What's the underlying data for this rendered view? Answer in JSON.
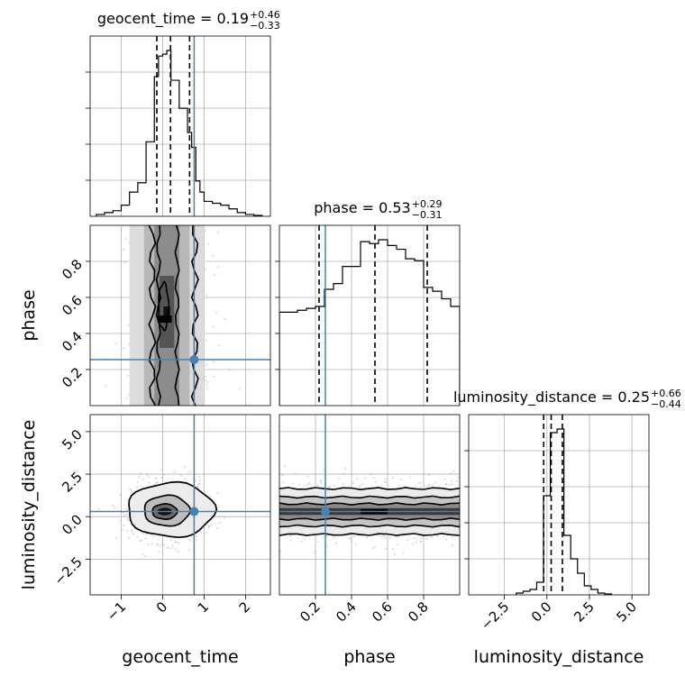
{
  "chart_data": {
    "type": "corner",
    "parameters": [
      "geocent_time",
      "phase",
      "luminosity_distance"
    ],
    "truth": {
      "geocent_time": 0.76,
      "phase": 0.255,
      "luminosity_distance": 0.3
    },
    "colors": {
      "truth": "#4682b4",
      "hist": "#000000",
      "grid": "#b0b0b0",
      "samples": "#9a9a9a"
    },
    "grid": true,
    "panels": {
      "geocent_time_hist": {
        "title_main": "geocent_time = 0.19",
        "title_sup": "+0.46",
        "title_sub": "−0.33",
        "xlim": [
          -1.75,
          2.6
        ],
        "quantiles": [
          -0.14,
          0.19,
          0.65
        ],
        "bins": [
          -1.6,
          -1.4,
          -1.2,
          -1.0,
          -0.8,
          -0.6,
          -0.4,
          -0.2,
          -0.1,
          0.0,
          0.1,
          0.2,
          0.3,
          0.4,
          0.5,
          0.6,
          0.7,
          0.8,
          0.9,
          1.0,
          1.2,
          1.4,
          1.6,
          1.8,
          2.0,
          2.2,
          2.4
        ],
        "counts": [
          0.01,
          0.02,
          0.03,
          0.06,
          0.13,
          0.18,
          0.4,
          0.75,
          0.86,
          0.87,
          0.89,
          0.73,
          0.73,
          0.58,
          0.58,
          0.45,
          0.37,
          0.19,
          0.13,
          0.08,
          0.07,
          0.06,
          0.04,
          0.02,
          0.01,
          0.005
        ]
      },
      "phase_hist": {
        "title_main": "phase = 0.53",
        "title_sup": "+0.29",
        "title_sub": "−0.31",
        "xlim": [
          0.0,
          1.0
        ],
        "quantiles": [
          0.22,
          0.53,
          0.82
        ],
        "bins": [
          0.0,
          0.05,
          0.1,
          0.15,
          0.2,
          0.25,
          0.3,
          0.35,
          0.4,
          0.45,
          0.5,
          0.55,
          0.6,
          0.65,
          0.7,
          0.75,
          0.8,
          0.85,
          0.9,
          0.95,
          1.0
        ],
        "counts": [
          0.49,
          0.49,
          0.5,
          0.51,
          0.52,
          0.61,
          0.64,
          0.73,
          0.73,
          0.86,
          0.85,
          0.87,
          0.84,
          0.82,
          0.77,
          0.76,
          0.62,
          0.6,
          0.56,
          0.52
        ]
      },
      "luminosity_distance_hist": {
        "title_main": "luminosity_distance = 0.25",
        "title_sup": "+0.66",
        "title_sub": "−0.44",
        "xlim": [
          -4.6,
          6.0
        ],
        "quantiles": [
          -0.19,
          0.25,
          0.91
        ],
        "bins": [
          -1.8,
          -1.4,
          -1.0,
          -0.6,
          -0.2,
          0.2,
          0.6,
          1.0,
          1.4,
          1.8,
          2.2,
          2.6,
          3.0,
          3.4,
          3.8
        ],
        "counts": [
          0.01,
          0.02,
          0.03,
          0.07,
          0.55,
          0.9,
          0.92,
          0.33,
          0.2,
          0.12,
          0.05,
          0.03,
          0.01,
          0.005
        ]
      },
      "phase_vs_geocent_time": {
        "xlim": [
          -1.75,
          2.6
        ],
        "ylim": [
          0.0,
          1.0
        ],
        "mode": {
          "x": 0.05,
          "y": 0.48
        }
      },
      "luminosity_distance_vs_geocent_time": {
        "xlim": [
          -1.75,
          2.6
        ],
        "ylim": [
          -4.6,
          6.0
        ],
        "mode": {
          "x": 0.05,
          "y": 0.3
        }
      },
      "luminosity_distance_vs_phase": {
        "xlim": [
          0.0,
          1.0
        ],
        "ylim": [
          -4.6,
          6.0
        ],
        "mode": {
          "x": 0.53,
          "y": 0.3
        }
      }
    },
    "ticks": {
      "geocent_time": {
        "values": [
          -1,
          0,
          1,
          2
        ],
        "labels": [
          "−1",
          "0",
          "1",
          "2"
        ]
      },
      "phase": {
        "values": [
          0.2,
          0.4,
          0.6,
          0.8
        ],
        "labels": [
          "0.2",
          "0.4",
          "0.6",
          "0.8"
        ]
      },
      "luminosity_distance": {
        "values": [
          -2.5,
          0.0,
          2.5,
          5.0
        ],
        "labels": [
          "−2.5",
          "0.0",
          "2.5",
          "5.0"
        ]
      }
    },
    "xlabels": [
      "geocent_time",
      "phase",
      "luminosity_distance"
    ],
    "ylabels": [
      "phase",
      "luminosity_distance"
    ]
  }
}
